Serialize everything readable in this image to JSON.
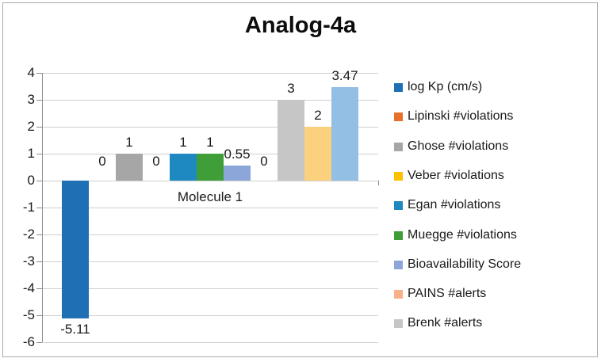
{
  "chart_data": {
    "type": "bar",
    "title": "Analog-4a",
    "categories": [
      "Molecule 1"
    ],
    "xlabel": "",
    "ylabel": "",
    "ylim": [
      -6,
      4
    ],
    "yticks": [
      4,
      3,
      2,
      1,
      0,
      -1,
      -2,
      -3,
      -4,
      -5,
      -6
    ],
    "grid": true,
    "legend_position": "right",
    "series": [
      {
        "name": "log Kp (cm/s)",
        "value": -5.11,
        "label": "-5.11",
        "color": "#1F6FB5",
        "in_legend": true
      },
      {
        "name": "Lipinski #violations",
        "value": 0,
        "label": "0",
        "color": "#E8702D",
        "in_legend": true
      },
      {
        "name": "Ghose #violations",
        "value": 1,
        "label": "1",
        "color": "#A6A6A6",
        "in_legend": true
      },
      {
        "name": "Veber #violations",
        "value": 0,
        "label": "0",
        "color": "#FFC000",
        "in_legend": true
      },
      {
        "name": "Egan #violations",
        "value": 1,
        "label": "1",
        "color": "#1E88C0",
        "in_legend": true
      },
      {
        "name": "Muegge #violations",
        "value": 1,
        "label": "1",
        "color": "#3F9E38",
        "in_legend": true
      },
      {
        "name": "Bioavailability Score",
        "value": 0.55,
        "label": "0.55",
        "color": "#8CA6D9",
        "in_legend": true
      },
      {
        "name": "PAINS #alerts",
        "value": 0,
        "label": "0",
        "color": "#F8B088",
        "in_legend": true
      },
      {
        "name": "Brenk #alerts",
        "value": 3,
        "label": "3",
        "color": "#C6C6C6",
        "in_legend": true
      },
      {
        "name": "",
        "value": 2,
        "label": "2",
        "color": "#FBD17E",
        "in_legend": false
      },
      {
        "name": "",
        "value": 3.47,
        "label": "3.47",
        "color": "#93BFE4",
        "in_legend": false
      }
    ]
  }
}
